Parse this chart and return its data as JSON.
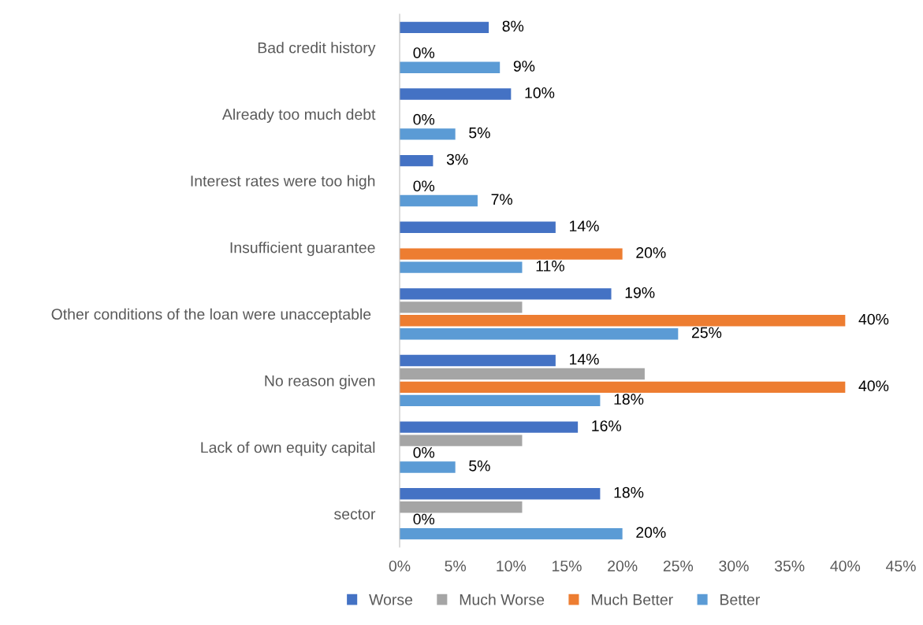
{
  "chart_data": {
    "type": "bar",
    "orientation": "horizontal",
    "categories": [
      "Bad credit history",
      "Already too much debt",
      "Interest rates were too high",
      "Insufficient guarantee",
      "Other conditions of the loan were unacceptable ",
      "No reason given",
      "Lack of own equity capital",
      "sector"
    ],
    "series": [
      {
        "name": "Worse",
        "color": "#4472c4",
        "values": [
          8,
          10,
          3,
          14,
          19,
          14,
          16,
          18
        ],
        "value_labels": [
          "8%",
          "10%",
          "3%",
          "14%",
          "19%",
          "14%",
          "16%",
          "18%"
        ]
      },
      {
        "name": "Much Worse",
        "color": "#a5a5a5",
        "values": [
          0,
          0,
          0,
          0,
          11,
          22,
          11,
          11
        ],
        "value_labels": [
          null,
          null,
          null,
          null,
          null,
          null,
          null,
          null
        ]
      },
      {
        "name": "Much Better",
        "color": "#ed7d31",
        "values": [
          0,
          0,
          0,
          20,
          40,
          40,
          0,
          0
        ],
        "value_labels": [
          "0%",
          "0%",
          "0%",
          "20%",
          "40%",
          "40%",
          "0%",
          "0%"
        ]
      },
      {
        "name": "Better",
        "color": "#5b9bd5",
        "values": [
          9,
          5,
          7,
          11,
          25,
          18,
          5,
          20
        ],
        "value_labels": [
          "9%",
          "5%",
          "7%",
          "11%",
          "25%",
          "18%",
          "5%",
          "20%"
        ]
      }
    ],
    "xlim": [
      0,
      45
    ],
    "xticks": [
      {
        "value": 0,
        "label": "0%"
      },
      {
        "value": 5,
        "label": "5%"
      },
      {
        "value": 10,
        "label": "10%"
      },
      {
        "value": 15,
        "label": "15%"
      },
      {
        "value": 20,
        "label": "20%"
      },
      {
        "value": 25,
        "label": "25%"
      },
      {
        "value": 30,
        "label": "30%"
      },
      {
        "value": 35,
        "label": "35%"
      },
      {
        "value": 40,
        "label": "40%"
      },
      {
        "value": 45,
        "label": "45%"
      }
    ],
    "grid": false,
    "legend": "bottom"
  }
}
